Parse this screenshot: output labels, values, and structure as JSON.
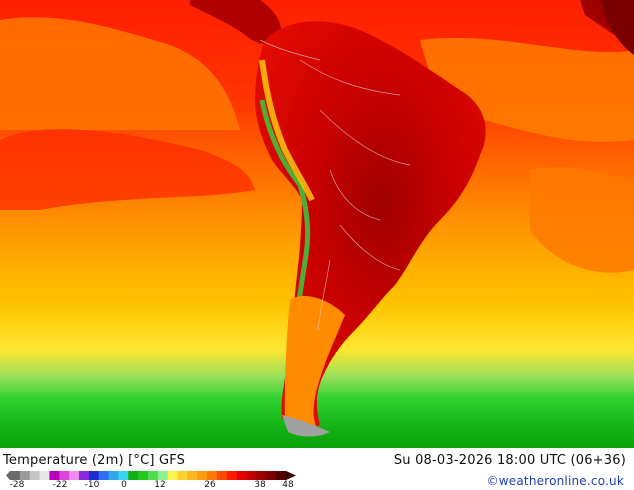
{
  "map": {
    "title": "Temperature (2m) [°C] GFS",
    "datetime": "Su 08-03-2026 18:00 UTC (06+36)",
    "credit": "©weatheronline.co.uk"
  },
  "legend": {
    "ticks": [
      "-28",
      "-22",
      "-10",
      "0",
      "12",
      "26",
      "38",
      "48"
    ],
    "colors": [
      "#6c6c6c",
      "#9a9a9a",
      "#c6c6c6",
      "#e7e7e7",
      "#c000c0",
      "#dd44dd",
      "#f08cf0",
      "#8a2be2",
      "#1b2fd0",
      "#2c6ff0",
      "#2fa8f0",
      "#35d8f0",
      "#10b010",
      "#23c823",
      "#50dc50",
      "#8ef08e",
      "#fff24a",
      "#ffd230",
      "#ffb51f",
      "#ff9a10",
      "#ff7a00",
      "#ff4a00",
      "#ff1a00",
      "#e50000",
      "#c00000",
      "#9c0000",
      "#780000",
      "#540000"
    ],
    "arrow_color": "#3a0000"
  }
}
